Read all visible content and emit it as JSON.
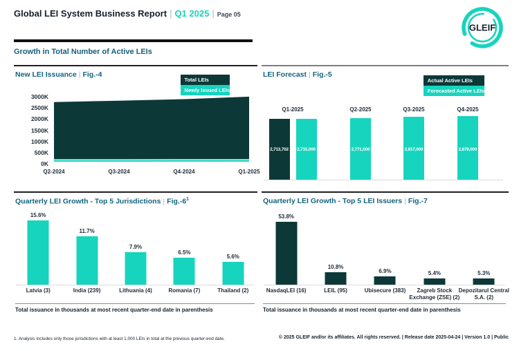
{
  "misc": {
    "pipe": "|"
  },
  "colors": {
    "teal": "#17D4BE",
    "dark": "#0C3938",
    "title_blue": "#14647E",
    "text_dark": "#15202B"
  },
  "header": {
    "title": "Global LEI System Business Report",
    "period": "Q1 2025",
    "page": "Page 05",
    "logo_text": "GLEIF"
  },
  "section_title": "Growth in Total Number of Active LEIs",
  "panels": {
    "fig4": {
      "title": "New LEI Issuance",
      "fig": "Fig.-4",
      "legend": [
        {
          "label": "Total LEIs",
          "style": "dark"
        },
        {
          "label": "Newly Issued LEIs",
          "style": "teal"
        }
      ]
    },
    "fig5": {
      "title": "LEI Forecast",
      "fig": "Fig.-5",
      "legend": [
        {
          "label": "Actual Active LEIs",
          "style": "dark"
        },
        {
          "label": "Forecasted Active LEIs",
          "style": "teal"
        }
      ]
    },
    "fig6": {
      "title": "Quarterly LEI Growth - Top 5 Jurisdictions",
      "fig": "Fig.-6",
      "fig_sup": "1",
      "caption": "Total issuance in thousands at most recent quarter-end date in parenthesis"
    },
    "fig7": {
      "title": "Quarterly LEI Growth - Top 5 LEI Issuers",
      "fig": "Fig.-7",
      "caption": "Total issuance in thousands at most recent quarter-end date in parenthesis"
    }
  },
  "chart_data": [
    {
      "id": "fig4",
      "type": "area",
      "title": "New LEI Issuance | Fig.-4",
      "categories": [
        "Q2-2024",
        "Q3-2024",
        "Q4-2024",
        "Q1-2025"
      ],
      "series": [
        {
          "name": "Total LEIs",
          "color": "#0C3938",
          "values_thousands": [
            2670,
            2730,
            2800,
            2910
          ],
          "estimated_from_pixels": true
        },
        {
          "name": "Newly Issued LEIs",
          "color": "#17D4BE",
          "values_thousands": [
            70,
            70,
            75,
            75
          ],
          "estimated_from_pixels": true
        }
      ],
      "ytick_labels": [
        "0K",
        "500K",
        "1000K",
        "1500K",
        "2000K",
        "2500K",
        "3000K"
      ],
      "ylim_thousands": [
        0,
        3000
      ],
      "legend_position": "top-right",
      "grid": false
    },
    {
      "id": "fig5",
      "type": "bar",
      "title": "LEI Forecast | Fig.-5",
      "categories": [
        "Q1-2025",
        "Q2-2025",
        "Q3-2025",
        "Q4-2025"
      ],
      "series": [
        {
          "name": "Actual Active LEIs",
          "color": "#0C3938",
          "values": [
            2713702,
            null,
            null,
            null
          ],
          "labels": [
            "2,713,702",
            null,
            null,
            null
          ]
        },
        {
          "name": "Forecasted Active LEIs",
          "color": "#17D4BE",
          "values": [
            2715000,
            2771000,
            2817000,
            2878000
          ],
          "labels": [
            "2,715,000",
            "2,771,000",
            "2,817,000",
            "2,878,000"
          ]
        }
      ],
      "value_axis_truncated": true,
      "legend_position": "top-right",
      "grid": false
    },
    {
      "id": "fig6",
      "type": "bar",
      "title": "Quarterly LEI Growth - Top 5 Jurisdictions | Fig.-6",
      "categories": [
        "Latvia (3)",
        "India (239)",
        "Lithuania (4)",
        "Romania (7)",
        "Thailand (2)"
      ],
      "values": [
        15.6,
        11.7,
        7.9,
        6.5,
        5.6
      ],
      "labels": [
        "15.6%",
        "11.7%",
        "7.9%",
        "6.5%",
        "5.6%"
      ],
      "bar_color": "#17D4BE",
      "grid": false
    },
    {
      "id": "fig7",
      "type": "bar",
      "title": "Quarterly LEI Growth - Top 5 LEI Issuers | Fig.-7",
      "categories": [
        "NasdaqLEI (16)",
        "LEIL (95)",
        "Ubisecure (383)",
        "Zagreb Stock Exchange (ZSE) (2)",
        "Depozitarul Central S.A. (2)"
      ],
      "values": [
        53.8,
        10.8,
        6.9,
        5.4,
        5.3
      ],
      "labels": [
        "53.8%",
        "10.8%",
        "6.9%",
        "5.4%",
        "5.3%"
      ],
      "bar_color": "#0C3938",
      "grid": false
    }
  ],
  "footnote": "1. Analysis includes only those jurisdictions with at least 1,000 LEIs in total at the previous quarter-end date.",
  "footer_right": "© 2025 GLEIF and/or its affiliates. All rights reserved. | Release date 2025-04-24 | Version 1.0 | Public"
}
